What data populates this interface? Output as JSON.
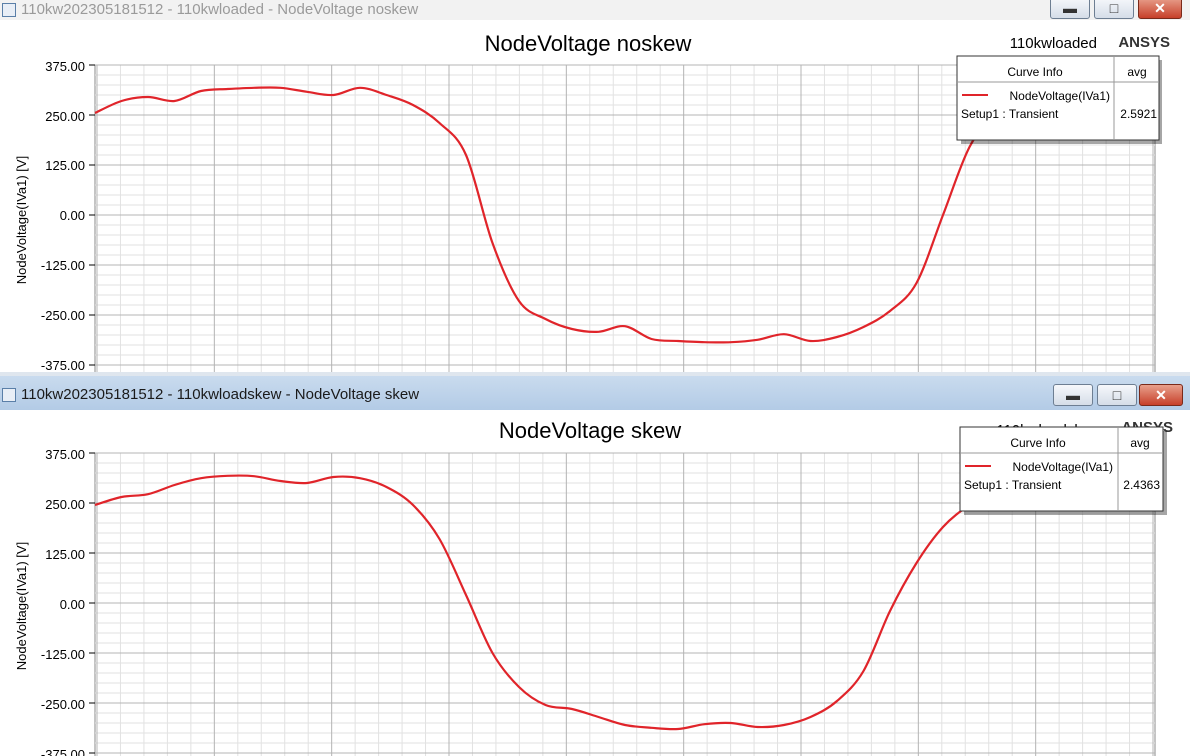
{
  "colors": {
    "curve": "#e0242a",
    "grid_major": "#b4b4b4",
    "grid_minor": "#e2e2e2"
  },
  "windows": [
    {
      "title": "110kw202305181512 - 110kwloaded - NodeVoltage noskew",
      "plot_title": "NodeVoltage noskew",
      "design_name": "110kwloaded",
      "brand": "ANSYS",
      "ylabel": "NodeVoltage(IVa1) [V]",
      "yticks": [
        "375.00",
        "250.00",
        "125.00",
        "0.00",
        "-125.00",
        "-250.00",
        "-375.00"
      ],
      "curve_info": {
        "header": "Curve Info",
        "col": "avg",
        "name": "NodeVoltage(IVa1)",
        "setup": "Setup1 : Transient",
        "avg": "2.5921"
      }
    },
    {
      "title": "110kw202305181512 - 110kwloadskew - NodeVoltage skew",
      "plot_title": "NodeVoltage skew",
      "design_name": "110kwloadskew",
      "brand": "ANSYS",
      "ylabel": "NodeVoltage(IVa1) [V]",
      "yticks": [
        "375.00",
        "250.00",
        "125.00",
        "0.00",
        "-125.00",
        "-250.00",
        "-375.00"
      ],
      "curve_info": {
        "header": "Curve Info",
        "col": "avg",
        "name": "NodeVoltage(IVa1)",
        "setup": "Setup1 : Transient",
        "avg": "2.4363"
      }
    }
  ],
  "chart_data": [
    {
      "type": "line",
      "title": "NodeVoltage noskew",
      "ylabel": "NodeVoltage(IVa1) [V]",
      "ylim": [
        -375,
        375
      ],
      "x": [
        0,
        2.5,
        5,
        7.5,
        10,
        12.5,
        15,
        17.5,
        20,
        22.5,
        25,
        27.5,
        30,
        32.5,
        35,
        37.5,
        40,
        42.5,
        45,
        47.5,
        50,
        52.5,
        55,
        57.5,
        60,
        62.5,
        65,
        67.5,
        70,
        72.5,
        75,
        77.5,
        80,
        82.5,
        85,
        87.5,
        90,
        92.5,
        95,
        97.5,
        100
      ],
      "series": [
        {
          "name": "NodeVoltage(IVa1)",
          "values": [
            255,
            285,
            295,
            285,
            310,
            315,
            318,
            318,
            308,
            300,
            318,
            300,
            275,
            230,
            150,
            -70,
            -215,
            -260,
            -285,
            -292,
            -278,
            -310,
            -315,
            -318,
            -318,
            -312,
            -298,
            -315,
            -305,
            -280,
            -240,
            -170,
            0,
            170,
            255,
            300,
            320,
            318,
            305,
            285,
            260
          ]
        }
      ]
    },
    {
      "type": "line",
      "title": "NodeVoltage skew",
      "ylabel": "NodeVoltage(IVa1) [V]",
      "ylim": [
        -375,
        375
      ],
      "x": [
        0,
        2.5,
        5,
        7.5,
        10,
        12.5,
        15,
        17.5,
        20,
        22.5,
        25,
        27.5,
        30,
        32.5,
        35,
        37.5,
        40,
        42.5,
        45,
        47.5,
        50,
        52.5,
        55,
        57.5,
        60,
        62.5,
        65,
        67.5,
        70,
        72.5,
        75,
        77.5,
        80,
        82.5,
        85,
        87.5,
        90,
        92.5,
        95,
        97.5,
        100
      ],
      "series": [
        {
          "name": "NodeVoltage(IVa1)",
          "values": [
            245,
            265,
            272,
            295,
            312,
            318,
            317,
            305,
            300,
            315,
            312,
            290,
            245,
            160,
            20,
            -125,
            -210,
            -255,
            -265,
            -285,
            -305,
            -312,
            -315,
            -303,
            -300,
            -310,
            -305,
            -285,
            -245,
            -170,
            -20,
            100,
            190,
            245,
            280,
            298,
            305,
            300,
            290,
            275,
            255
          ]
        }
      ]
    }
  ]
}
